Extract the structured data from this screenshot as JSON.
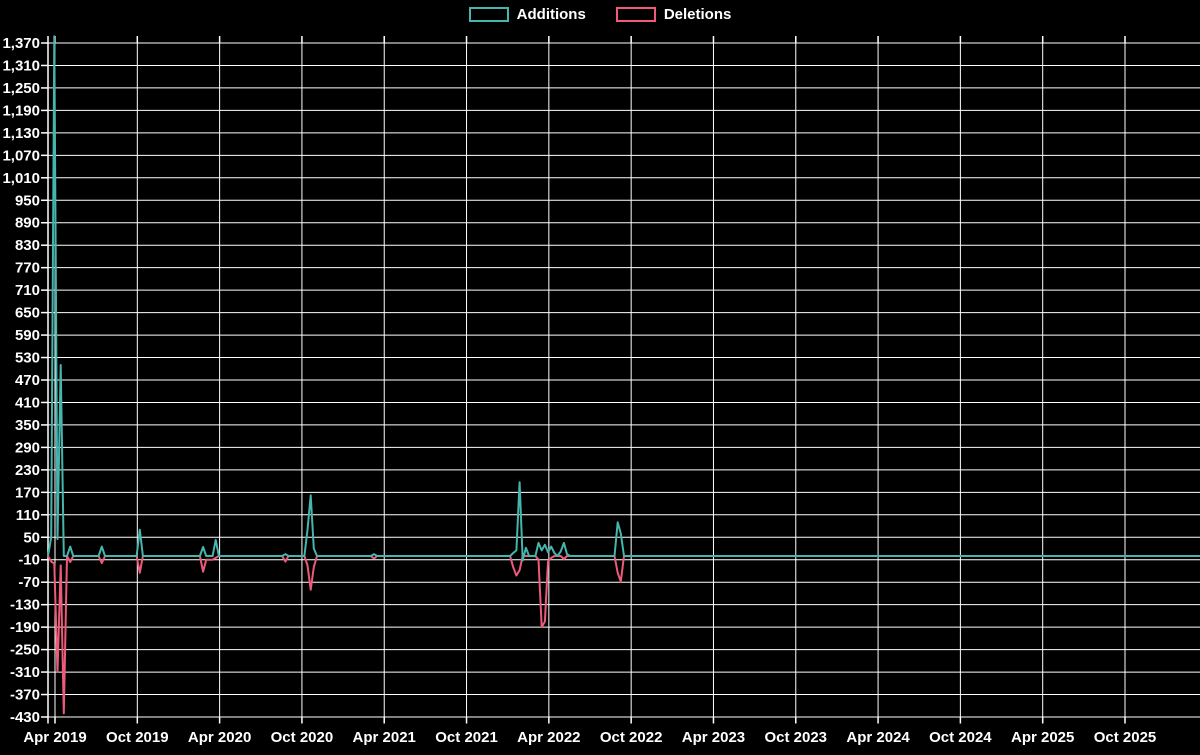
{
  "legend": {
    "items": [
      {
        "label": "Additions",
        "color": "#45b5ad"
      },
      {
        "label": "Deletions",
        "color": "#ee5a79"
      }
    ]
  },
  "chart_data": {
    "type": "line",
    "title": "",
    "xlabel": "",
    "ylabel": "",
    "grid": true,
    "background_color": "#000000",
    "gridline_color": "#ffffff",
    "label_color": "#ffffff",
    "x_axis": {
      "tick_labels": [
        "Apr 2019",
        "Oct 2019",
        "Apr 2020",
        "Oct 2020",
        "Apr 2021",
        "Oct 2021",
        "Apr 2022",
        "Oct 2022",
        "Apr 2023",
        "Oct 2023",
        "Apr 2024",
        "Oct 2024",
        "Apr 2025",
        "Oct 2025"
      ],
      "unit": "week index from mid-March 2019, one point per week",
      "range_weeks": [
        0,
        364
      ]
    },
    "y_axis": {
      "min": -430,
      "max": 1370,
      "step": 60,
      "tick_labels": [
        "-430",
        "-370",
        "-310",
        "-250",
        "-190",
        "-130",
        "-70",
        "-10",
        "50",
        "110",
        "170",
        "230",
        "290",
        "350",
        "410",
        "470",
        "530",
        "590",
        "650",
        "710",
        "770",
        "830",
        "890",
        "950",
        "1,010",
        "1,070",
        "1,130",
        "1,190",
        "1,250",
        "1,310",
        "1,370"
      ]
    },
    "legend_position": "top-center",
    "series": [
      {
        "name": "Additions",
        "color": "#45b5ad",
        "points": [
          [
            0,
            0
          ],
          [
            1,
            50
          ],
          [
            2,
            1388
          ],
          [
            3,
            45
          ],
          [
            4,
            510
          ],
          [
            5,
            0
          ],
          [
            6,
            0
          ],
          [
            7,
            25
          ],
          [
            8,
            0
          ],
          [
            16,
            0
          ],
          [
            17,
            25
          ],
          [
            18,
            0
          ],
          [
            28,
            0
          ],
          [
            29,
            70
          ],
          [
            30,
            0
          ],
          [
            48,
            0
          ],
          [
            49,
            24
          ],
          [
            50,
            0
          ],
          [
            52,
            0
          ],
          [
            53,
            43
          ],
          [
            54,
            0
          ],
          [
            74,
            0
          ],
          [
            75,
            5
          ],
          [
            76,
            0
          ],
          [
            81,
            0
          ],
          [
            82,
            70
          ],
          [
            83,
            162
          ],
          [
            84,
            20
          ],
          [
            85,
            0
          ],
          [
            102,
            0
          ],
          [
            103,
            5
          ],
          [
            104,
            0
          ],
          [
            146,
            0
          ],
          [
            147,
            8
          ],
          [
            148,
            15
          ],
          [
            149,
            197
          ],
          [
            150,
            -12
          ],
          [
            151,
            22
          ],
          [
            152,
            0
          ],
          [
            154,
            0
          ],
          [
            155,
            35
          ],
          [
            156,
            15
          ],
          [
            157,
            30
          ],
          [
            158,
            10
          ],
          [
            159,
            25
          ],
          [
            160,
            8
          ],
          [
            161,
            0
          ],
          [
            162,
            12
          ],
          [
            163,
            35
          ],
          [
            164,
            5
          ],
          [
            165,
            0
          ],
          [
            179,
            0
          ],
          [
            180,
            90
          ],
          [
            181,
            60
          ],
          [
            182,
            0
          ],
          [
            364,
            0
          ]
        ]
      },
      {
        "name": "Deletions",
        "color": "#ee5a79",
        "points": [
          [
            0,
            0
          ],
          [
            1,
            -15
          ],
          [
            2,
            -20
          ],
          [
            3,
            -310
          ],
          [
            4,
            -25
          ],
          [
            5,
            -420
          ],
          [
            6,
            0
          ],
          [
            7,
            -16
          ],
          [
            8,
            0
          ],
          [
            16,
            0
          ],
          [
            17,
            -19
          ],
          [
            18,
            0
          ],
          [
            28,
            0
          ],
          [
            29,
            -45
          ],
          [
            30,
            0
          ],
          [
            48,
            0
          ],
          [
            49,
            -42
          ],
          [
            50,
            -10
          ],
          [
            52,
            -10
          ],
          [
            53,
            -5
          ],
          [
            54,
            0
          ],
          [
            74,
            0
          ],
          [
            75,
            -15
          ],
          [
            76,
            0
          ],
          [
            81,
            0
          ],
          [
            82,
            -25
          ],
          [
            83,
            -90
          ],
          [
            84,
            -30
          ],
          [
            85,
            0
          ],
          [
            102,
            0
          ],
          [
            103,
            -7
          ],
          [
            104,
            0
          ],
          [
            146,
            0
          ],
          [
            147,
            -30
          ],
          [
            148,
            -52
          ],
          [
            149,
            -38
          ],
          [
            150,
            0
          ],
          [
            154,
            0
          ],
          [
            155,
            -10
          ],
          [
            156,
            -190
          ],
          [
            157,
            -175
          ],
          [
            158,
            -15
          ],
          [
            159,
            -5
          ],
          [
            160,
            0
          ],
          [
            162,
            0
          ],
          [
            163,
            -8
          ],
          [
            164,
            0
          ],
          [
            179,
            0
          ],
          [
            180,
            -45
          ],
          [
            181,
            -68
          ],
          [
            182,
            0
          ],
          [
            364,
            0
          ]
        ]
      }
    ]
  }
}
